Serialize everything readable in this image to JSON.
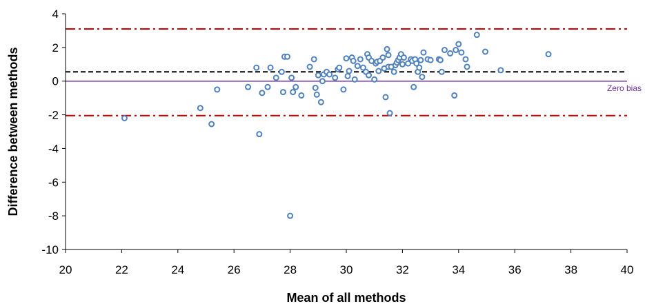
{
  "chart_data": {
    "type": "scatter",
    "title": "",
    "xlabel": "Mean of all methods",
    "ylabel": "Difference between methods",
    "xlim": [
      20,
      40
    ],
    "ylim": [
      -10,
      4
    ],
    "x_ticks": [
      "20",
      "22",
      "24",
      "26",
      "28",
      "30",
      "32",
      "34",
      "36",
      "38",
      "40"
    ],
    "y_ticks": [
      "4",
      "2",
      "0",
      "-2",
      "-4",
      "-6",
      "-8",
      "-10"
    ],
    "grid": false,
    "legend": "none",
    "reference_lines": [
      {
        "y": 3.1,
        "style": "dash-dot",
        "color": "#cc0000"
      },
      {
        "y": 0.55,
        "style": "dashed",
        "color": "#000000"
      },
      {
        "y": 0,
        "style": "solid",
        "color": "#7030a0",
        "label": "Zero bias"
      },
      {
        "y": -2.05,
        "style": "dash-dot",
        "color": "#cc0000"
      }
    ],
    "marker_color": "#4f81bd",
    "points": [
      [
        22.1,
        -2.2
      ],
      [
        24.8,
        -1.6
      ],
      [
        25.2,
        -2.55
      ],
      [
        25.4,
        -0.5
      ],
      [
        26.5,
        -0.35
      ],
      [
        26.8,
        0.8
      ],
      [
        26.9,
        -3.15
      ],
      [
        27.0,
        -0.7
      ],
      [
        27.2,
        -0.35
      ],
      [
        27.3,
        0.8
      ],
      [
        27.5,
        0.2
      ],
      [
        27.7,
        0.55
      ],
      [
        27.8,
        1.45
      ],
      [
        27.75,
        -0.65
      ],
      [
        27.9,
        1.45
      ],
      [
        28.0,
        -8.0
      ],
      [
        28.05,
        0.2
      ],
      [
        28.1,
        -0.65
      ],
      [
        28.2,
        -0.35
      ],
      [
        28.4,
        -0.85
      ],
      [
        28.7,
        0.85
      ],
      [
        28.85,
        1.3
      ],
      [
        28.9,
        -0.4
      ],
      [
        28.95,
        -0.8
      ],
      [
        29.0,
        0.35
      ],
      [
        29.1,
        -1.25
      ],
      [
        29.15,
        0.0
      ],
      [
        29.2,
        0.4
      ],
      [
        29.3,
        0.55
      ],
      [
        29.4,
        0.4
      ],
      [
        29.6,
        0.2
      ],
      [
        29.7,
        0.7
      ],
      [
        29.75,
        0.8
      ],
      [
        29.9,
        -0.5
      ],
      [
        30.0,
        1.35
      ],
      [
        30.05,
        0.3
      ],
      [
        30.1,
        0.6
      ],
      [
        30.2,
        1.4
      ],
      [
        30.25,
        1.2
      ],
      [
        30.3,
        0.1
      ],
      [
        30.4,
        0.9
      ],
      [
        30.5,
        1.3
      ],
      [
        30.6,
        0.8
      ],
      [
        30.7,
        0.55
      ],
      [
        30.75,
        1.6
      ],
      [
        30.8,
        1.4
      ],
      [
        30.8,
        0.35
      ],
      [
        30.9,
        1.2
      ],
      [
        31.0,
        0.1
      ],
      [
        31.05,
        1.05
      ],
      [
        31.1,
        1.15
      ],
      [
        31.15,
        0.6
      ],
      [
        31.2,
        1.2
      ],
      [
        31.3,
        1.4
      ],
      [
        31.35,
        0.75
      ],
      [
        31.4,
        -0.95
      ],
      [
        31.45,
        1.9
      ],
      [
        31.5,
        1.55
      ],
      [
        31.5,
        0.85
      ],
      [
        31.55,
        -1.9
      ],
      [
        31.6,
        0.85
      ],
      [
        31.7,
        0.55
      ],
      [
        31.75,
        0.95
      ],
      [
        31.8,
        1.1
      ],
      [
        31.85,
        1.25
      ],
      [
        31.9,
        1.4
      ],
      [
        31.95,
        1.6
      ],
      [
        32.0,
        1.0
      ],
      [
        32.05,
        1.4
      ],
      [
        32.2,
        1.05
      ],
      [
        32.3,
        1.3
      ],
      [
        32.35,
        1.2
      ],
      [
        32.4,
        -0.35
      ],
      [
        32.45,
        1.3
      ],
      [
        32.5,
        1.05
      ],
      [
        32.55,
        0.55
      ],
      [
        32.6,
        0.8
      ],
      [
        32.65,
        1.25
      ],
      [
        32.7,
        0.25
      ],
      [
        32.75,
        1.7
      ],
      [
        32.9,
        1.3
      ],
      [
        33.0,
        1.25
      ],
      [
        33.3,
        1.3
      ],
      [
        33.35,
        1.25
      ],
      [
        33.4,
        0.55
      ],
      [
        33.5,
        1.85
      ],
      [
        33.7,
        1.65
      ],
      [
        33.85,
        -0.85
      ],
      [
        33.9,
        1.85
      ],
      [
        34.0,
        2.2
      ],
      [
        34.1,
        1.7
      ],
      [
        34.25,
        1.3
      ],
      [
        34.3,
        0.85
      ],
      [
        34.65,
        2.75
      ],
      [
        34.95,
        1.75
      ],
      [
        35.5,
        0.65
      ],
      [
        37.2,
        1.6
      ]
    ]
  }
}
